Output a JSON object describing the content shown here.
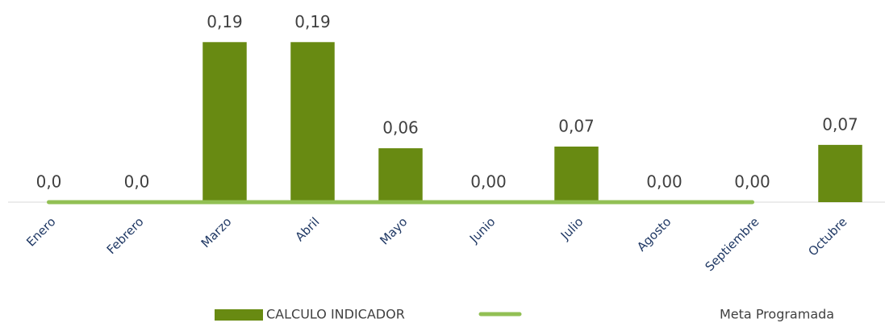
{
  "chart_data": {
    "type": "bar",
    "categories": [
      "Enero",
      "Febrero",
      "Marzo",
      "Abril",
      "Mayo",
      "Junio",
      "Julio",
      "Agosto",
      "Septiembre",
      "Octubre"
    ],
    "ylim": [
      0,
      0.24
    ],
    "series": [
      {
        "name": "CALCULO INDICADOR",
        "color": "#688a12",
        "values": [
          0,
          0,
          0.19,
          0.19,
          0.064,
          0,
          0.066,
          0,
          0,
          0.068
        ],
        "value_labels": [
          "0,0",
          "0,0",
          "0,19",
          "0,19",
          "0,06",
          "0,00",
          "0,07",
          "0,00",
          "0,00",
          "0,07"
        ]
      },
      {
        "name": "Meta Programada",
        "type": "line",
        "color": "#92c054",
        "values": [
          0,
          0,
          0,
          0,
          0,
          0,
          0,
          0,
          0,
          null
        ]
      }
    ]
  }
}
